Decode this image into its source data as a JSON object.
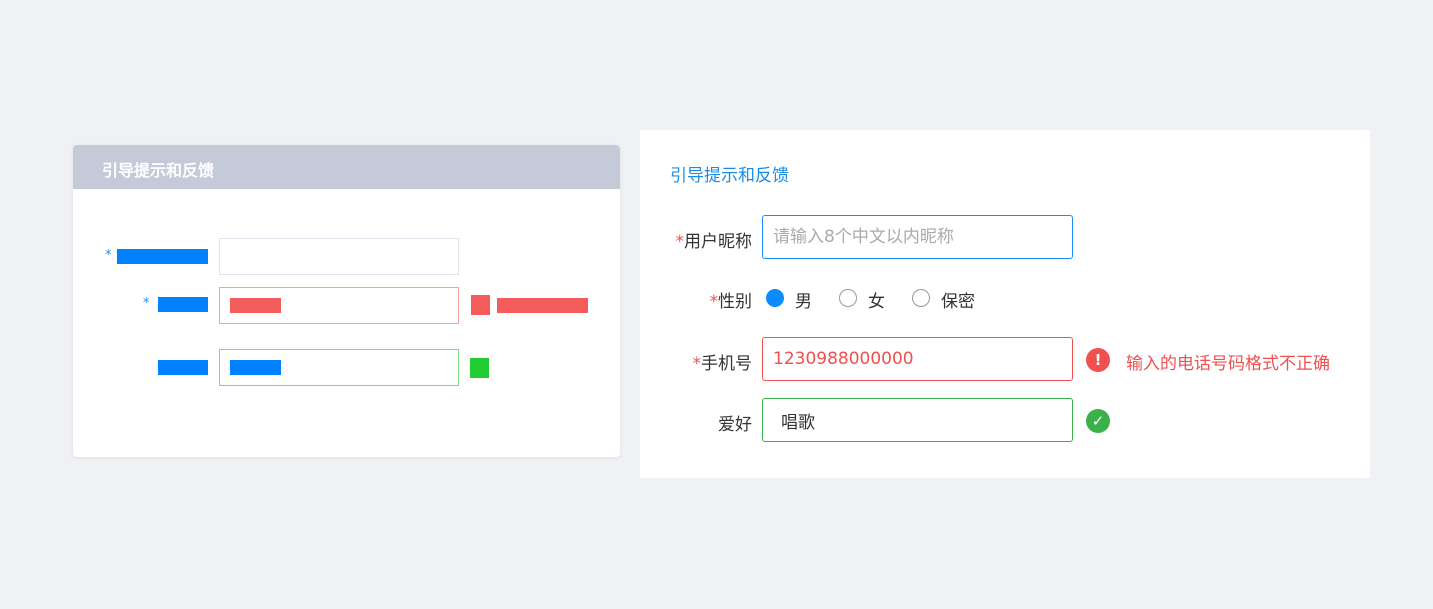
{
  "sketch_card": {
    "title": "引导提示和反馈",
    "required_mark": "*"
  },
  "form": {
    "title": "引导提示和反馈",
    "required_mark": "*",
    "nickname": {
      "label": "用户昵称",
      "placeholder": "请输入8个中文以内昵称",
      "value": ""
    },
    "gender": {
      "label": "性别",
      "options": [
        "男",
        "女",
        "保密"
      ],
      "selected": "男"
    },
    "phone": {
      "label": "手机号",
      "value": "1230988000000",
      "error_icon": "exclamation-circle-icon",
      "error": "输入的电话号码格式不正确"
    },
    "hobby": {
      "label": "爱好",
      "value": "唱歌",
      "success_icon": "check-circle-icon"
    }
  },
  "colors": {
    "accent": "#1a8cff",
    "error": "#f05050",
    "success": "#3cb04a",
    "card_header": "#c5cad9",
    "background": "#f0f1f5"
  }
}
